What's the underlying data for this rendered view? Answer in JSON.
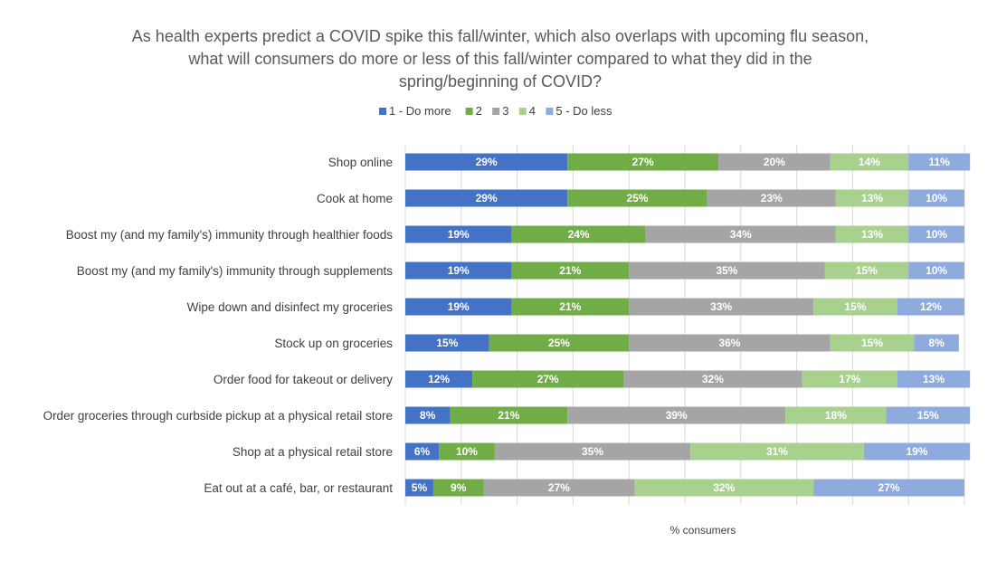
{
  "chart_data": {
    "type": "bar",
    "orientation": "horizontal",
    "stacked": true,
    "title_lines": [
      "As health experts predict a COVID spike this fall/winter, which also overlaps with upcoming flu season,",
      "what will consumers do more or less of this fall/winter compared to what they did in the",
      "spring/beginning of COVID?"
    ],
    "xlabel": "% consumers",
    "ylabel": "",
    "xlim": [
      0,
      100
    ],
    "grid": true,
    "legend_position": "top",
    "categories": [
      "Shop online",
      "Cook at home",
      "Boost my (and my family's) immunity through healthier foods",
      "Boost my (and my family's) immunity through supplements",
      "Wipe down and disinfect my groceries",
      "Stock up on groceries",
      "Order food for takeout or delivery",
      "Order groceries through curbside pickup at a physical retail store",
      "Shop at a physical retail store",
      "Eat out at a café, bar, or restaurant"
    ],
    "series": [
      {
        "name": "1 - Do more",
        "color": "#4472c4",
        "values": [
          29,
          29,
          19,
          19,
          19,
          15,
          12,
          8,
          6,
          5
        ]
      },
      {
        "name": "2",
        "color": "#70ad47",
        "values": [
          27,
          25,
          24,
          21,
          21,
          25,
          27,
          21,
          10,
          9
        ]
      },
      {
        "name": "3",
        "color": "#a5a5a5",
        "values": [
          20,
          23,
          34,
          35,
          33,
          36,
          32,
          39,
          35,
          27
        ]
      },
      {
        "name": "4",
        "color": "#a9d18e",
        "values": [
          14,
          13,
          13,
          15,
          15,
          15,
          17,
          18,
          31,
          32
        ]
      },
      {
        "name": "5 - Do less",
        "color": "#8faadc",
        "values": [
          11,
          10,
          10,
          10,
          12,
          8,
          13,
          15,
          19,
          27
        ]
      }
    ]
  }
}
